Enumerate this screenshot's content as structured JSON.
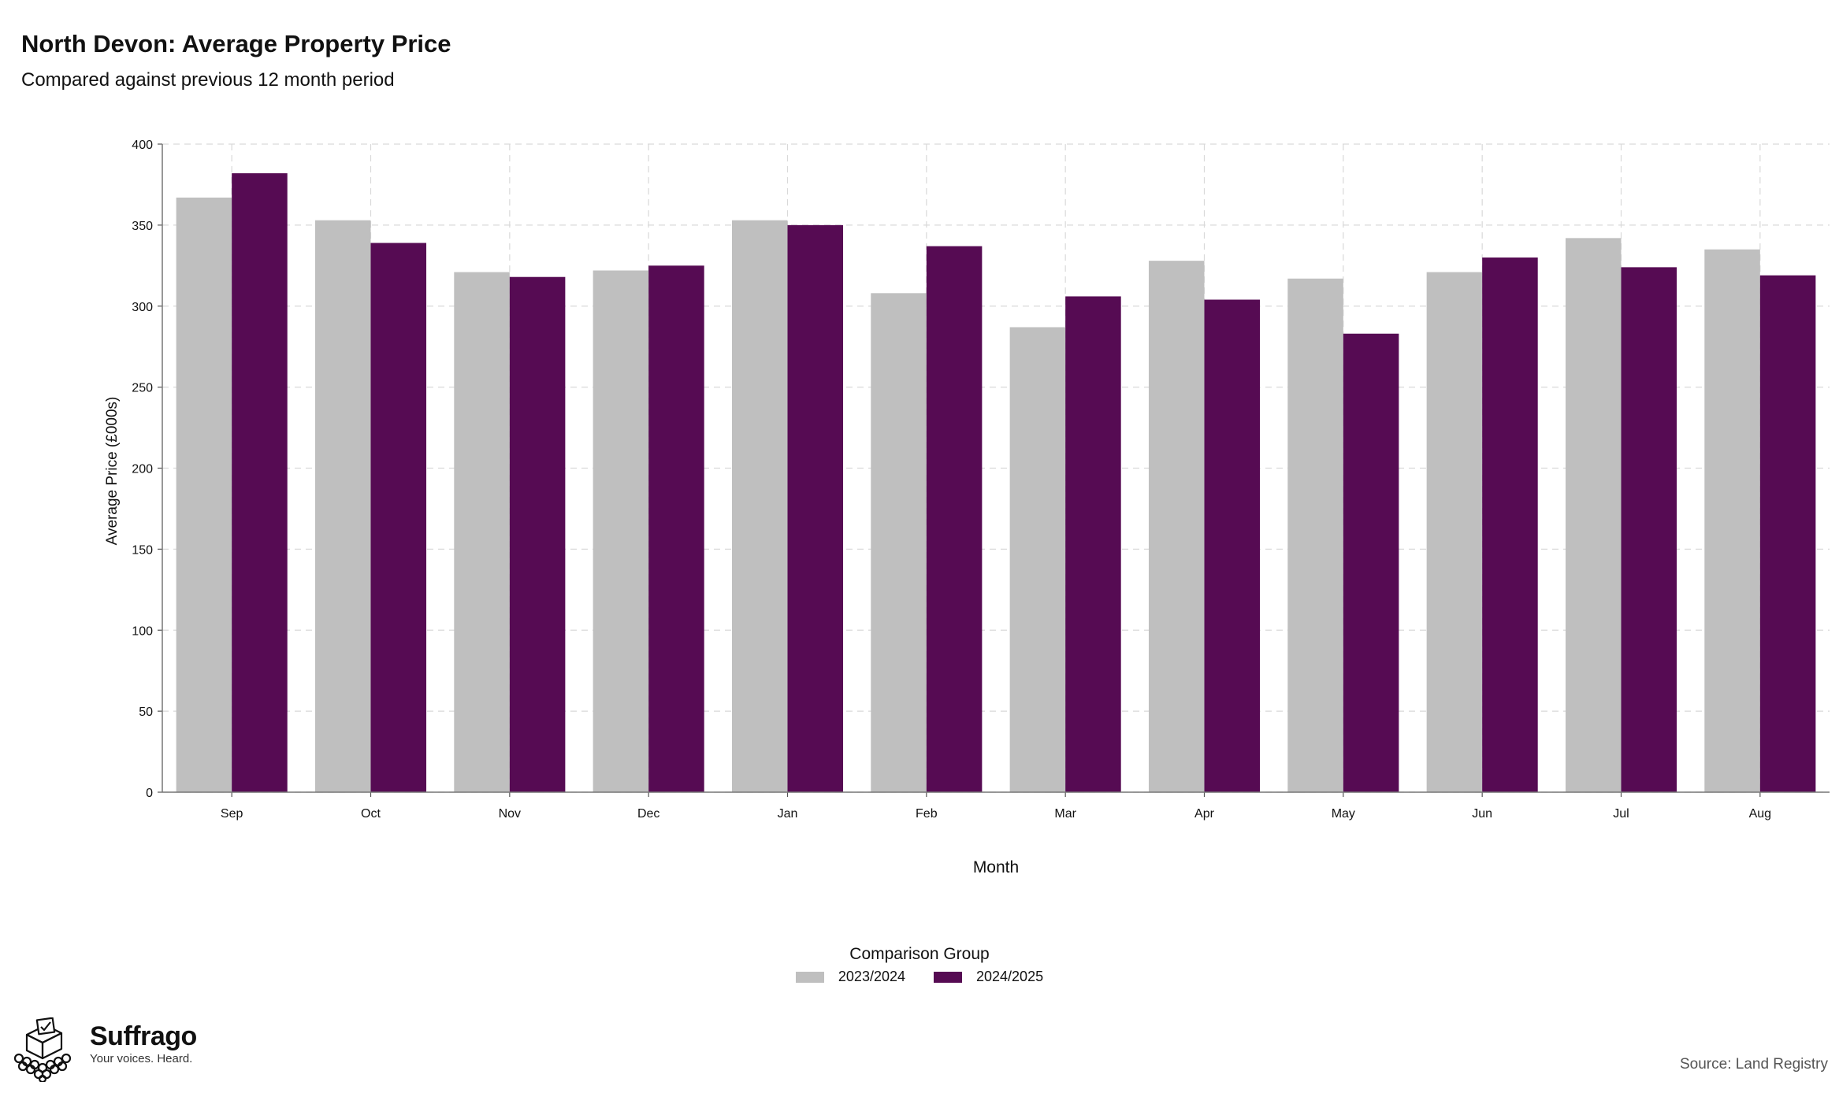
{
  "header": {
    "title": "North Devon: Average Property Price",
    "subtitle": "Compared against previous 12 month period"
  },
  "legend": {
    "title": "Comparison Group",
    "items": [
      {
        "label": "2023/2024",
        "color": "#bfbfbf"
      },
      {
        "label": "2024/2025",
        "color": "#560b53"
      }
    ]
  },
  "footer": {
    "brand_name": "Suffrago",
    "tagline": "Your voices. Heard.",
    "source": "Source: Land Registry",
    "logo_icon": "ballot-box-with-crowd-icon"
  },
  "chart_data": {
    "type": "bar",
    "title": "North Devon: Average Property Price",
    "subtitle": "Compared against previous 12 month period",
    "xlabel": "Month",
    "ylabel": "Average Price (£000s)",
    "ylim": [
      0,
      400
    ],
    "yticks": [
      0,
      50,
      100,
      150,
      200,
      250,
      300,
      350,
      400
    ],
    "grid": true,
    "legend_placement": "bottom-center",
    "categories": [
      "Sep",
      "Oct",
      "Nov",
      "Dec",
      "Jan",
      "Feb",
      "Mar",
      "Apr",
      "May",
      "Jun",
      "Jul",
      "Aug"
    ],
    "series": [
      {
        "name": "2023/2024",
        "color": "#bfbfbf",
        "values": [
          367,
          353,
          321,
          322,
          353,
          308,
          287,
          328,
          317,
          321,
          342,
          335
        ]
      },
      {
        "name": "2024/2025",
        "color": "#560b53",
        "values": [
          382,
          339,
          318,
          325,
          350,
          337,
          306,
          304,
          283,
          330,
          324,
          319
        ]
      }
    ]
  }
}
